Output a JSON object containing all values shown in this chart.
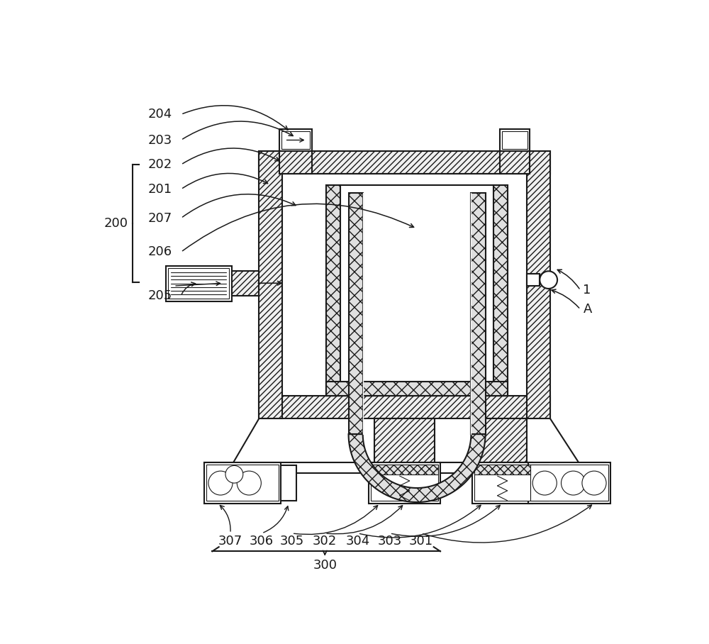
{
  "bg_color": "#ffffff",
  "lc": "#1a1a1a",
  "fontsize": 13,
  "labels_200": [
    "204",
    "203",
    "202",
    "201",
    "207",
    "206",
    "205"
  ],
  "label_200_group": "200",
  "labels_right": [
    "1",
    "A"
  ],
  "labels_300": [
    "307",
    "306",
    "305",
    "302",
    "304",
    "303",
    "301"
  ],
  "label_300": "300"
}
